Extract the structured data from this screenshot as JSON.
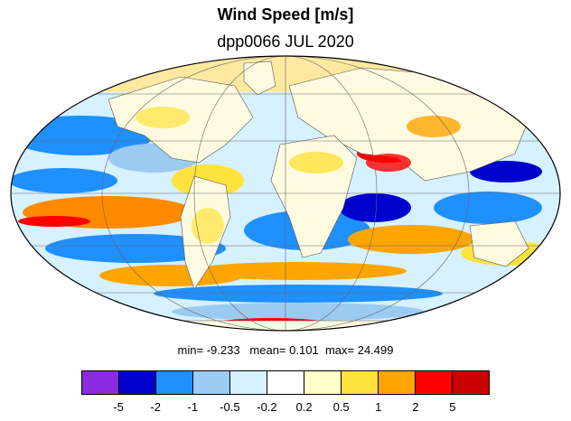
{
  "title": "Wind Speed [m/s]",
  "subtitle": "dpp0066 JUL 2020",
  "stats": {
    "min_label": "min=",
    "min": "-9.233",
    "mean_label": "mean=",
    "mean": "0.101",
    "max_label": "max=",
    "max": "24.499"
  },
  "colorbar": {
    "colors": [
      "#8a2be2",
      "#0000cd",
      "#1e90ff",
      "#9ccbf2",
      "#d6f1ff",
      "#ffffff",
      "#ffffcc",
      "#ffe23c",
      "#ffa500",
      "#ff0000",
      "#c80000"
    ],
    "tick_labels": [
      "-5",
      "-2",
      "-1",
      "-0.5",
      "-0.2",
      "0.2",
      "0.5",
      "1",
      "2",
      "5"
    ]
  },
  "map": {
    "projection": "mollweide",
    "grid": true,
    "land_color": "#fffbe0",
    "ocean_base_color": "#d6f1ff"
  }
}
